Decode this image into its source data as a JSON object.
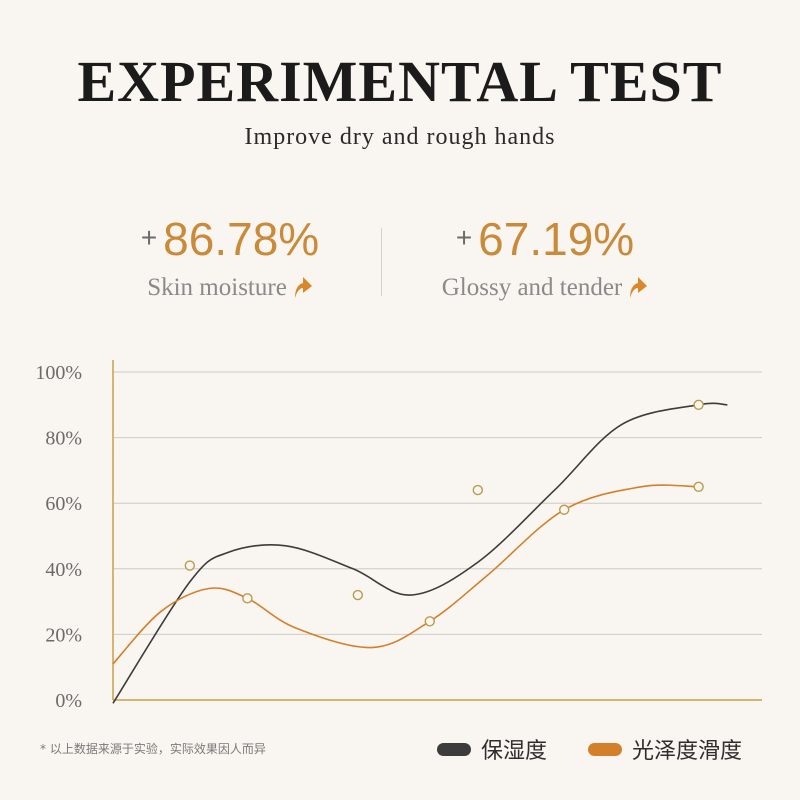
{
  "title": "EXPERIMENTAL TEST",
  "subtitle": "Improve dry and rough hands",
  "stats": [
    {
      "plus": "+",
      "value": "86.78%",
      "label": "Skin moisture"
    },
    {
      "plus": "+",
      "value": "67.19%",
      "label": "Glossy and tender"
    }
  ],
  "colors": {
    "accent": "#c98a3a",
    "dark_series": "#3c3c3c",
    "orange_series": "#d47f2a",
    "axis": "#c9a04a"
  },
  "footnote": "* 以上数据来源于实验，实际效果因人而异",
  "chart_data": {
    "type": "line",
    "title": "",
    "xlabel": "",
    "ylabel": "",
    "ylim": [
      0,
      100
    ],
    "yticks": [
      "0%",
      "20%",
      "40%",
      "60%",
      "80%",
      "100%"
    ],
    "grid": true,
    "legend_position": "bottom-right",
    "series": [
      {
        "name": "保湿度",
        "color": "#3c3c3c",
        "smooth": true,
        "x": [
          0,
          8,
          12,
          18,
          25,
          31,
          38,
          46,
          53,
          61,
          64
        ],
        "y": [
          -1,
          36,
          45,
          47,
          40,
          32,
          42,
          64,
          84,
          90,
          90
        ],
        "markers": [
          [
            8,
            41
          ],
          [
            25.5,
            32
          ],
          [
            38,
            64
          ],
          [
            61,
            90
          ]
        ]
      },
      {
        "name": "光泽度滑度",
        "color": "#d47f2a",
        "smooth": true,
        "x": [
          0,
          5,
          10,
          14,
          19,
          27,
          33,
          39,
          47,
          55,
          61
        ],
        "y": [
          11,
          27,
          34,
          31,
          22,
          16,
          24,
          38,
          58,
          65,
          65
        ],
        "markers": [
          [
            14,
            31
          ],
          [
            33,
            24
          ],
          [
            47,
            58
          ],
          [
            61,
            65
          ]
        ]
      }
    ]
  }
}
